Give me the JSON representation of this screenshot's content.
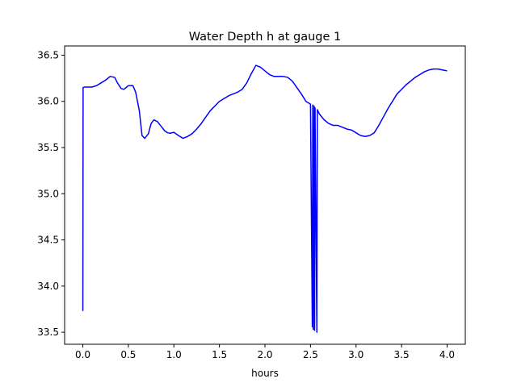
{
  "chart_data": {
    "type": "line",
    "title": "Water Depth h at gauge 1",
    "xlabel": "hours",
    "ylabel": "",
    "xlim": [
      -0.2,
      4.2
    ],
    "ylim": [
      33.37,
      36.6
    ],
    "xticks": [
      0.0,
      0.5,
      1.0,
      1.5,
      2.0,
      2.5,
      3.0,
      3.5,
      4.0
    ],
    "xtick_labels": [
      "0.0",
      "0.5",
      "1.0",
      "1.5",
      "2.0",
      "2.5",
      "3.0",
      "3.5",
      "4.0"
    ],
    "yticks": [
      33.5,
      34.0,
      34.5,
      35.0,
      35.5,
      36.0,
      36.5
    ],
    "ytick_labels": [
      "33.5",
      "34.0",
      "34.5",
      "35.0",
      "35.5",
      "36.0",
      "36.5"
    ],
    "grid": false,
    "legend": "none",
    "series": [
      {
        "color": "#0000ff",
        "x": [
          0.0,
          0.003,
          0.02,
          0.1,
          0.15,
          0.2,
          0.25,
          0.3,
          0.35,
          0.38,
          0.42,
          0.45,
          0.5,
          0.55,
          0.58,
          0.62,
          0.65,
          0.68,
          0.72,
          0.75,
          0.78,
          0.82,
          0.86,
          0.9,
          0.93,
          0.96,
          1.0,
          1.05,
          1.1,
          1.15,
          1.2,
          1.25,
          1.3,
          1.35,
          1.4,
          1.5,
          1.6,
          1.65,
          1.7,
          1.75,
          1.8,
          1.85,
          1.9,
          1.95,
          2.0,
          2.05,
          2.1,
          2.15,
          2.2,
          2.25,
          2.3,
          2.35,
          2.4,
          2.45,
          2.5,
          2.52,
          2.525,
          2.53,
          2.54,
          2.545,
          2.55,
          2.57,
          2.575,
          2.58,
          2.6,
          2.65,
          2.7,
          2.75,
          2.8,
          2.85,
          2.9,
          2.95,
          3.0,
          3.05,
          3.1,
          3.15,
          3.2,
          3.25,
          3.3,
          3.35,
          3.4,
          3.45,
          3.5,
          3.55,
          3.6,
          3.65,
          3.7,
          3.75,
          3.8,
          3.85,
          3.9,
          3.95,
          4.0
        ],
        "y": [
          33.73,
          36.15,
          36.155,
          36.155,
          36.17,
          36.2,
          36.23,
          36.27,
          36.26,
          36.2,
          36.14,
          36.13,
          36.17,
          36.17,
          36.1,
          35.9,
          35.63,
          35.6,
          35.65,
          35.76,
          35.8,
          35.78,
          35.73,
          35.68,
          35.66,
          35.655,
          35.665,
          35.63,
          35.6,
          35.62,
          35.65,
          35.7,
          35.76,
          35.83,
          35.9,
          36.0,
          36.06,
          36.08,
          36.1,
          36.13,
          36.2,
          36.3,
          36.39,
          36.37,
          36.33,
          36.29,
          36.27,
          36.27,
          36.27,
          36.26,
          36.22,
          36.15,
          36.08,
          36.0,
          35.97,
          33.56,
          35.96,
          33.53,
          35.95,
          33.52,
          35.93,
          33.5,
          35.91,
          35.9,
          35.86,
          35.8,
          35.76,
          35.74,
          35.74,
          35.72,
          35.7,
          35.69,
          35.66,
          35.63,
          35.62,
          35.63,
          35.66,
          35.74,
          35.83,
          35.92,
          36.0,
          36.08,
          36.13,
          36.18,
          36.22,
          36.26,
          36.29,
          36.32,
          36.34,
          36.35,
          36.35,
          36.34,
          36.33
        ]
      }
    ]
  }
}
